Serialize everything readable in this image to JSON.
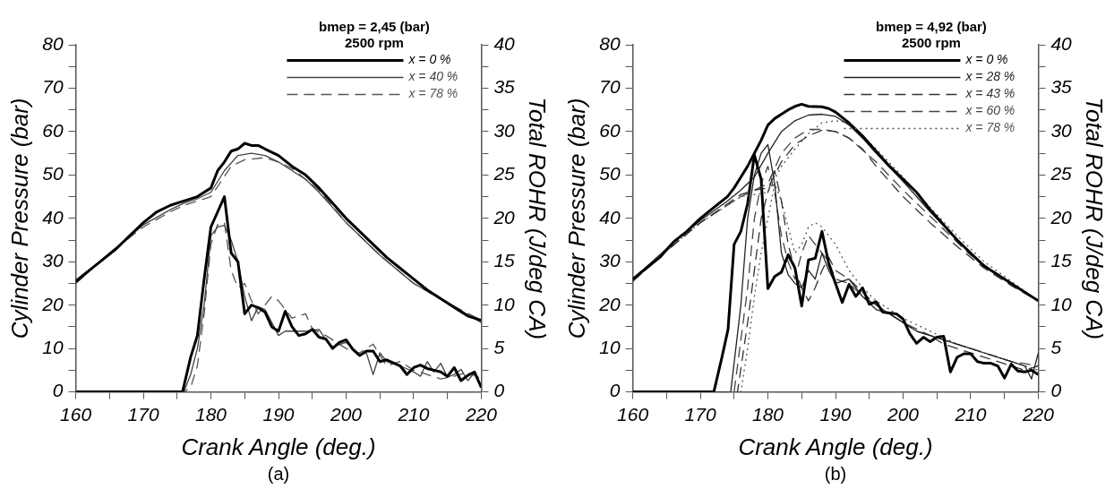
{
  "chart_data": [
    {
      "type": "line",
      "xlabel": "Crank Angle (deg.)",
      "ylabel": "Cylinder Pressure (bar)",
      "y2label": "Total ROHR (J/deg CA)",
      "legend_title": "bmep = 2,45 (bar)\n2500 rpm",
      "legend": "top right",
      "grid": false,
      "marker": "none",
      "annotations": [
        "(a)"
      ],
      "xlim": [
        160,
        220
      ],
      "xticks": [
        160,
        {
          "value": 165,
          "label": null
        },
        170,
        {
          "value": 175,
          "label": null
        },
        180,
        {
          "value": 185,
          "label": null
        },
        190,
        {
          "value": 195,
          "label": null
        },
        200,
        {
          "value": 205,
          "label": null
        },
        210,
        {
          "value": 215,
          "label": null
        },
        220
      ],
      "ylim": [
        0,
        80
      ],
      "yticks": [
        0,
        {
          "value": 5,
          "label": null
        },
        10,
        {
          "value": 15,
          "label": null
        },
        20,
        {
          "value": 25,
          "label": null
        },
        30,
        {
          "value": 35,
          "label": null
        },
        40,
        {
          "value": 45,
          "label": null
        },
        50,
        {
          "value": 55,
          "label": null
        },
        60,
        {
          "value": 65,
          "label": null
        },
        70,
        {
          "value": 75,
          "label": null
        },
        80
      ],
      "y2lim": [
        0,
        40
      ],
      "y2ticks": [
        0,
        {
          "value": 2.5,
          "label": null
        },
        5,
        {
          "value": 7.5,
          "label": null
        },
        10,
        {
          "value": 12.5,
          "label": null
        },
        15,
        {
          "value": 17.5,
          "label": null
        },
        20,
        {
          "value": 22.5,
          "label": null
        },
        25,
        {
          "value": 27.5,
          "label": null
        },
        30,
        {
          "value": 32.5,
          "label": null
        },
        35,
        {
          "value": 37.5,
          "label": null
        },
        40
      ],
      "series": [
        {
          "name": "x = 0 %",
          "color": "#000000",
          "line_style": "solid",
          "x": [
            160,
            162,
            164,
            166,
            168,
            170,
            172,
            174,
            176,
            178,
            180,
            181,
            182,
            183,
            184,
            185,
            186,
            187,
            188,
            190,
            192,
            194,
            196,
            198,
            200,
            202,
            204,
            206,
            208,
            210,
            212,
            214,
            216,
            218,
            220
          ],
          "values": [
            25.5,
            28,
            30.5,
            33,
            36,
            39,
            41.5,
            43,
            44,
            45,
            47,
            51,
            53,
            55.5,
            56,
            57.3,
            56.8,
            56.8,
            56,
            54.5,
            52,
            50,
            47,
            43.5,
            40,
            37,
            34,
            31,
            28.5,
            26,
            23.5,
            21.5,
            19.5,
            17.5,
            16.5
          ]
        },
        {
          "name": "x = 40 %",
          "color": "#444444",
          "line_style": "solid",
          "x": [
            160,
            165,
            170,
            174,
            176,
            178,
            180,
            182,
            184,
            186,
            188,
            190,
            192,
            194,
            196,
            198,
            200,
            205,
            210,
            215,
            220
          ],
          "values": [
            25,
            32,
            38.5,
            42,
            43.5,
            44.5,
            46,
            51,
            54.5,
            55,
            54.5,
            53,
            51,
            49,
            46,
            42.5,
            39,
            31.5,
            25,
            20.5,
            16
          ]
        },
        {
          "name": "x = 78 %",
          "color": "#555555",
          "line_style": "dashed",
          "x": [
            160,
            165,
            170,
            174,
            176,
            178,
            180,
            183,
            185,
            188,
            190,
            192,
            194,
            196,
            200,
            205,
            210,
            215,
            220
          ],
          "values": [
            25,
            32,
            38,
            41.5,
            43,
            44,
            45,
            52,
            53.5,
            54,
            53,
            51.5,
            49,
            46.5,
            39,
            31.5,
            25,
            20.5,
            16.5
          ]
        },
        {
          "color": "#000000",
          "line_style": "solid",
          "axis": "y2",
          "x": [
            160,
            175.8,
            177,
            178,
            179,
            180,
            182,
            183,
            184,
            185,
            186,
            187,
            188,
            189,
            190,
            191,
            192,
            193,
            194,
            195,
            196,
            197,
            198,
            199,
            200,
            201,
            202,
            203,
            204,
            205,
            206,
            208,
            209,
            210,
            211,
            212,
            213,
            214,
            215,
            216,
            217,
            218,
            219,
            220
          ],
          "values": [
            0,
            0,
            4,
            6.5,
            13,
            19,
            22.5,
            16,
            15,
            9,
            10,
            9.7,
            9.2,
            7.5,
            7,
            9.3,
            7.5,
            6.5,
            6.7,
            7.2,
            6.3,
            6.1,
            5,
            5.7,
            6,
            4.9,
            4.2,
            4.7,
            4.7,
            3.5,
            3.7,
            3,
            2,
            2.8,
            3.1,
            2.7,
            2.5,
            2.3,
            1.8,
            2.8,
            1.3,
            1.9,
            2.3,
            0.5
          ]
        },
        {
          "color": "#444444",
          "line_style": "solid",
          "axis": "y2",
          "x": [
            160,
            176,
            177,
            178,
            179,
            180,
            181,
            182,
            183,
            184,
            185,
            186,
            187,
            188,
            190,
            191,
            194,
            196,
            197,
            198,
            200,
            202,
            203,
            204,
            205,
            206,
            208,
            210,
            211,
            212,
            213,
            214,
            215,
            216,
            217,
            218,
            219,
            220
          ],
          "values": [
            0,
            0,
            2,
            5,
            10,
            18,
            19,
            19.2,
            17.5,
            15,
            11,
            8.2,
            9.8,
            9.5,
            6.5,
            7,
            7,
            7.2,
            6,
            5.2,
            5.7,
            4.3,
            4.5,
            2,
            4.5,
            3.5,
            3,
            2.3,
            1.8,
            3.5,
            2.3,
            3.3,
            1.7,
            2,
            2.6,
            1.3,
            2.2,
            0.5
          ]
        },
        {
          "color": "#555555",
          "line_style": "dashed",
          "axis": "y2",
          "x": [
            160,
            176,
            177,
            178,
            179,
            180,
            181,
            182,
            183,
            184,
            185,
            186,
            187,
            188,
            189,
            190,
            192,
            194,
            195,
            197,
            200,
            202,
            204,
            206,
            208,
            210,
            212,
            214,
            216,
            218,
            220
          ],
          "values": [
            0,
            0,
            0.5,
            3,
            9,
            17,
            19.3,
            19.5,
            14,
            12,
            12.5,
            10.5,
            9,
            10,
            11,
            10.5,
            8.5,
            9,
            7.3,
            6.5,
            5,
            4.5,
            5.5,
            3,
            3.5,
            2.5,
            2,
            1.5,
            1.8,
            2.3,
            1.5
          ]
        }
      ]
    },
    {
      "type": "line",
      "xlabel": "Crank Angle (deg.)",
      "ylabel": "Cylinder Pressure (bar)",
      "y2label": "Total ROHR (J/deg CA)",
      "legend_title": "bmep = 4,92 (bar)\n2500 rpm",
      "legend": "top right",
      "grid": false,
      "marker": "none",
      "annotations": [
        "(b)"
      ],
      "xlim": [
        160,
        220
      ],
      "xticks": [
        160,
        {
          "value": 165,
          "label": null
        },
        170,
        {
          "value": 175,
          "label": null
        },
        180,
        {
          "value": 185,
          "label": null
        },
        190,
        {
          "value": 195,
          "label": null
        },
        200,
        {
          "value": 205,
          "label": null
        },
        210,
        {
          "value": 215,
          "label": null
        },
        220
      ],
      "ylim": [
        0,
        80
      ],
      "yticks": [
        0,
        {
          "value": 5,
          "label": null
        },
        10,
        {
          "value": 15,
          "label": null
        },
        20,
        {
          "value": 25,
          "label": null
        },
        30,
        {
          "value": 35,
          "label": null
        },
        40,
        {
          "value": 45,
          "label": null
        },
        50,
        {
          "value": 55,
          "label": null
        },
        60,
        {
          "value": 65,
          "label": null
        },
        70,
        {
          "value": 75,
          "label": null
        },
        80
      ],
      "y2lim": [
        0,
        40
      ],
      "y2ticks": [
        0,
        {
          "value": 2.5,
          "label": null
        },
        5,
        {
          "value": 7.5,
          "label": null
        },
        10,
        {
          "value": 12.5,
          "label": null
        },
        15,
        {
          "value": 17.5,
          "label": null
        },
        20,
        {
          "value": 22.5,
          "label": null
        },
        25,
        {
          "value": 27.5,
          "label": null
        },
        30,
        {
          "value": 32.5,
          "label": null
        },
        35,
        {
          "value": 37.5,
          "label": null
        },
        40
      ],
      "series": [
        {
          "name": "x = 0 %",
          "color": "#000000",
          "line_style": "solid",
          "x": [
            160,
            162,
            164,
            166,
            168,
            170,
            172,
            174,
            175,
            176,
            177,
            178,
            179,
            180,
            181,
            182,
            183,
            184,
            185,
            186,
            188,
            189,
            190,
            192,
            194,
            196,
            198,
            200,
            202,
            204,
            206,
            208,
            210,
            212,
            214,
            216,
            218,
            220
          ],
          "values": [
            26,
            28.5,
            31,
            34.5,
            37,
            40,
            42.5,
            45,
            47,
            49.5,
            52,
            55,
            58,
            61.5,
            63,
            64,
            65,
            65.8,
            66.3,
            65.8,
            65.7,
            65.3,
            64.5,
            62,
            59,
            55.5,
            52,
            49,
            46,
            42,
            38.5,
            35,
            32,
            29,
            27,
            25,
            23,
            21
          ]
        },
        {
          "name": "x = 28 %",
          "color": "#222222",
          "line_style": "solid",
          "x": [
            160,
            165,
            170,
            174,
            176,
            178,
            180,
            182,
            184,
            186,
            188,
            190,
            192,
            194,
            196,
            200,
            204,
            208,
            212,
            216,
            220
          ],
          "values": [
            26,
            33,
            39.5,
            44,
            46.5,
            49.5,
            55,
            60,
            62.5,
            63.8,
            64,
            63.5,
            61.5,
            58.5,
            55,
            48.5,
            41.5,
            35,
            29,
            25,
            21
          ]
        },
        {
          "name": "x = 43 %",
          "color": "#333333",
          "line_style": "dashed",
          "x": [
            160,
            165,
            170,
            176,
            178,
            180,
            182,
            184,
            186,
            188,
            190,
            192,
            194,
            196,
            200,
            204,
            208,
            212,
            216,
            220
          ],
          "values": [
            25.5,
            32.5,
            39,
            45.5,
            46.5,
            47,
            53,
            57,
            59,
            60.3,
            60,
            58.5,
            56,
            52,
            45,
            39,
            33.5,
            28.5,
            24.5,
            21
          ]
        },
        {
          "name": "x = 60 %",
          "color": "#444444",
          "line_style": "dashed",
          "x": [
            160,
            165,
            170,
            176,
            180,
            182,
            184,
            186,
            188,
            190,
            192,
            196,
            200,
            205,
            210,
            215,
            220
          ],
          "values": [
            25.5,
            32.5,
            39,
            45,
            48,
            55,
            58.5,
            60.5,
            60.5,
            60,
            58.5,
            53,
            46.5,
            39,
            31.5,
            26,
            21
          ]
        },
        {
          "name": "x = 78 %",
          "color": "#555555",
          "line_style": "dotted",
          "x": [
            160,
            165,
            170,
            176,
            180,
            182,
            184,
            186,
            188,
            190,
            192,
            194,
            196,
            200,
            204,
            208,
            212,
            216,
            220
          ],
          "values": [
            25.5,
            32.5,
            39,
            45,
            46,
            52,
            56,
            59.5,
            62,
            62.5,
            62,
            59,
            56,
            49.5,
            42.5,
            36,
            30,
            25.5,
            21
          ]
        },
        {
          "color": "#000000",
          "line_style": "solid",
          "axis": "y2",
          "x": [
            160,
            172,
            173.2,
            174.1,
            175,
            176,
            177,
            178,
            179,
            180,
            181,
            182,
            183,
            184,
            185,
            186,
            187,
            188,
            189,
            190,
            191,
            192,
            193,
            194,
            195,
            196,
            197,
            199,
            200,
            201,
            202,
            203,
            204,
            205,
            206,
            207,
            208,
            209,
            210,
            211,
            212,
            213,
            214,
            215,
            216,
            217,
            218,
            219,
            220
          ],
          "values": [
            0,
            0,
            4,
            7.2,
            17,
            18.5,
            21.7,
            27.3,
            24.5,
            11.9,
            13.3,
            13.8,
            15.8,
            14.3,
            9.9,
            15.2,
            15.4,
            18.5,
            14.8,
            12.5,
            10.3,
            12.4,
            11,
            12,
            10.1,
            10.4,
            9.2,
            9,
            8.4,
            6.7,
            5.6,
            6.3,
            5.8,
            6.3,
            6.4,
            2.3,
            4,
            4.4,
            4.4,
            3.5,
            3.3,
            3.3,
            3,
            1.6,
            3.2,
            2.4,
            2.3,
            2.5,
            2
          ]
        },
        {
          "color": "#222222",
          "line_style": "solid",
          "axis": "y2",
          "x": [
            160,
            174.5,
            176,
            177,
            178,
            179,
            180,
            181,
            182,
            183,
            184,
            185,
            186,
            187,
            188,
            189,
            190,
            192,
            194,
            196,
            198,
            200,
            202,
            204,
            206,
            208,
            210,
            212,
            214,
            216,
            218,
            219,
            220
          ],
          "values": [
            0,
            0,
            10,
            20,
            25,
            27.5,
            28.5,
            24,
            16,
            13.5,
            12.5,
            12,
            14,
            13,
            16,
            14,
            12.5,
            13,
            11,
            9.5,
            9,
            8,
            7,
            6.5,
            6,
            5.5,
            5,
            4.5,
            4,
            3.5,
            3,
            1.5,
            4.5
          ]
        },
        {
          "color": "#333333",
          "line_style": "dashed",
          "axis": "y2",
          "x": [
            160,
            175.5,
            177,
            178,
            179,
            180,
            181,
            182,
            183,
            184,
            185,
            186,
            187,
            188,
            189,
            190,
            192,
            194,
            196,
            198,
            200,
            202,
            204,
            206,
            208,
            210,
            212,
            214,
            216,
            218,
            220
          ],
          "values": [
            0,
            0,
            8,
            14,
            20,
            23,
            25.5,
            22,
            17,
            14,
            12,
            10.5,
            12,
            14,
            15.5,
            14,
            13,
            11.5,
            10,
            9,
            8,
            7,
            6.5,
            5.5,
            5,
            4.5,
            4,
            3.5,
            3,
            2.5,
            3
          ]
        },
        {
          "color": "#444444",
          "line_style": "dashed",
          "axis": "y2",
          "x": [
            160,
            175,
            177,
            178,
            179,
            180,
            181,
            182,
            183,
            184,
            185,
            186,
            187,
            188,
            189,
            190,
            192,
            194,
            196,
            200,
            204,
            208,
            212,
            216,
            220
          ],
          "values": [
            0,
            0,
            12,
            20,
            24,
            26,
            23,
            18,
            15,
            13,
            16,
            18,
            17,
            16,
            15,
            13,
            12.5,
            11,
            10,
            8,
            6.5,
            5.5,
            4.5,
            3.5,
            3
          ]
        },
        {
          "color": "#555555",
          "line_style": "dotted",
          "axis": "y2",
          "x": [
            160,
            176,
            177,
            178,
            179,
            180,
            181,
            182,
            183,
            184,
            185,
            186,
            187,
            188,
            189,
            190,
            192,
            194,
            196,
            198,
            200,
            204,
            208,
            212,
            216,
            220
          ],
          "values": [
            0,
            0,
            5,
            11,
            16,
            20,
            24,
            22,
            19,
            16,
            17,
            19,
            19.5,
            19,
            18,
            17,
            14,
            12,
            10.5,
            9.5,
            8.5,
            7,
            5.5,
            4.5,
            3.5,
            2.5
          ]
        }
      ]
    }
  ]
}
